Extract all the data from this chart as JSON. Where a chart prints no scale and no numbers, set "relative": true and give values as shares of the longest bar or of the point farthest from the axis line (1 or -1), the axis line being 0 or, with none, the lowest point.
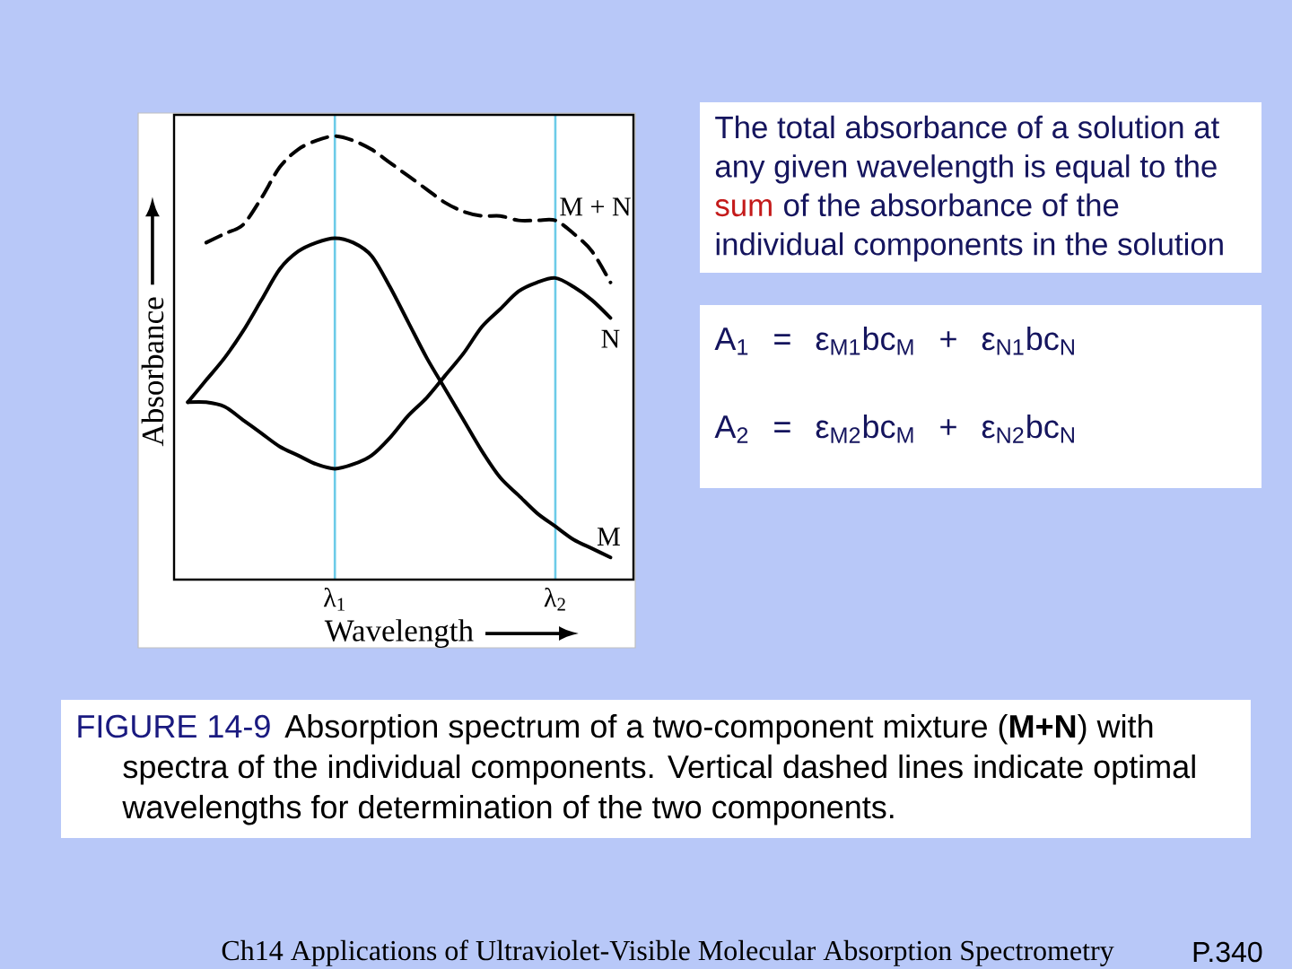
{
  "chart_data": {
    "type": "line",
    "relative": true,
    "xlabel": "Wavelength",
    "ylabel": "Absorbance",
    "grid": "x",
    "categories": [
      null,
      null,
      null,
      null,
      null,
      null,
      null,
      null,
      "λ$_{1}$",
      null,
      null,
      null,
      null,
      null,
      null,
      null,
      null,
      null,
      null,
      null,
      "λ$_{2}$",
      null,
      null,
      null
    ],
    "series": [
      {
        "name": "M + N",
        "color": "#000000",
        "line_style": "dashed",
        "values": [
          null,
          0.76,
          0.78,
          0.8,
          0.86,
          0.93,
          0.97,
          0.99,
          1.0,
          0.99,
          0.97,
          0.94,
          0.91,
          0.88,
          0.85,
          0.83,
          0.82,
          0.82,
          0.81,
          0.81,
          0.81,
          0.78,
          0.74,
          0.67
        ]
      },
      {
        "name": "N",
        "color": "#000000",
        "line_style": "solid",
        "values": [
          0.4,
          0.4,
          0.39,
          0.36,
          0.33,
          0.3,
          0.28,
          0.26,
          0.25,
          0.26,
          0.28,
          0.32,
          0.37,
          0.41,
          0.46,
          0.51,
          0.57,
          0.61,
          0.65,
          0.67,
          0.68,
          0.66,
          0.63,
          0.59
        ]
      },
      {
        "name": "M",
        "color": "#000000",
        "line_style": "solid",
        "values": [
          0.4,
          0.45,
          0.5,
          0.56,
          0.63,
          0.7,
          0.74,
          0.76,
          0.77,
          0.76,
          0.73,
          0.66,
          0.58,
          0.5,
          0.43,
          0.36,
          0.29,
          0.23,
          0.19,
          0.15,
          0.12,
          0.09,
          0.07,
          0.05
        ]
      }
    ],
    "annotations": [
      "The total absorbance of a solution at any given wavelength is equal to the",
      "sum",
      "of the absorbance of the",
      "individual components in the solution",
      "A$_{1}$ = ε$_{M1}$bc$_{M}$ + ε$_{N1}$bc$_{N}$",
      "A$_{2}$ = ε$_{M2}$bc$_{M}$ + ε$_{N2}$bc$_{N}$",
      "FIGURE 14-9",
      "Absorption spectrum of a two-component mixture (**M+N**) with",
      "spectra of the individual components. Vertical dashed lines indicate optimal wavelengths for determination of the two components.",
      "Ch14 Applications of Ultraviolet-Visible Molecular Absorption Spectrometry",
      "P.340"
    ]
  }
}
